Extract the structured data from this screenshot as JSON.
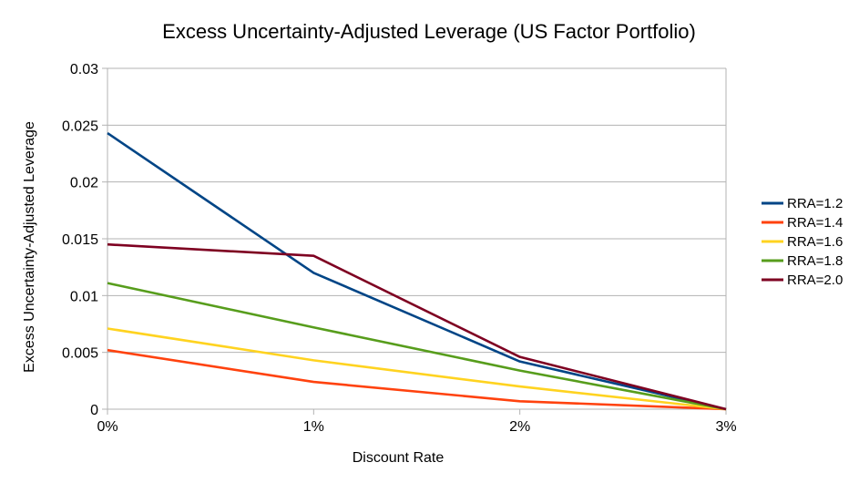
{
  "chart_data": {
    "type": "line",
    "title": "Excess Uncertainty-Adjusted Leverage (US Factor Portfolio)",
    "xlabel": "Discount Rate",
    "ylabel": "Excess Uncertainty-Adjusted Leverage",
    "categories": [
      "0%",
      "1%",
      "2%",
      "3%"
    ],
    "ylim": [
      0,
      0.03
    ],
    "yticks": [
      "0",
      "0.005",
      "0.01",
      "0.015",
      "0.02",
      "0.025",
      "0.03"
    ],
    "grid": true,
    "legend_position": "right",
    "series": [
      {
        "name": "RRA=1.2",
        "color": "#004586",
        "values": [
          0.0243,
          0.012,
          0.0042,
          0.0
        ]
      },
      {
        "name": "RRA=1.4",
        "color": "#ff420e",
        "values": [
          0.0052,
          0.0024,
          0.0007,
          0.0
        ]
      },
      {
        "name": "RRA=1.6",
        "color": "#ffd320",
        "values": [
          0.0071,
          0.0043,
          0.002,
          0.0
        ]
      },
      {
        "name": "RRA=1.8",
        "color": "#579d1c",
        "values": [
          0.0111,
          0.0072,
          0.0034,
          0.0
        ]
      },
      {
        "name": "RRA=2.0",
        "color": "#7e0021",
        "values": [
          0.0145,
          0.0135,
          0.0046,
          0.0
        ]
      }
    ]
  }
}
